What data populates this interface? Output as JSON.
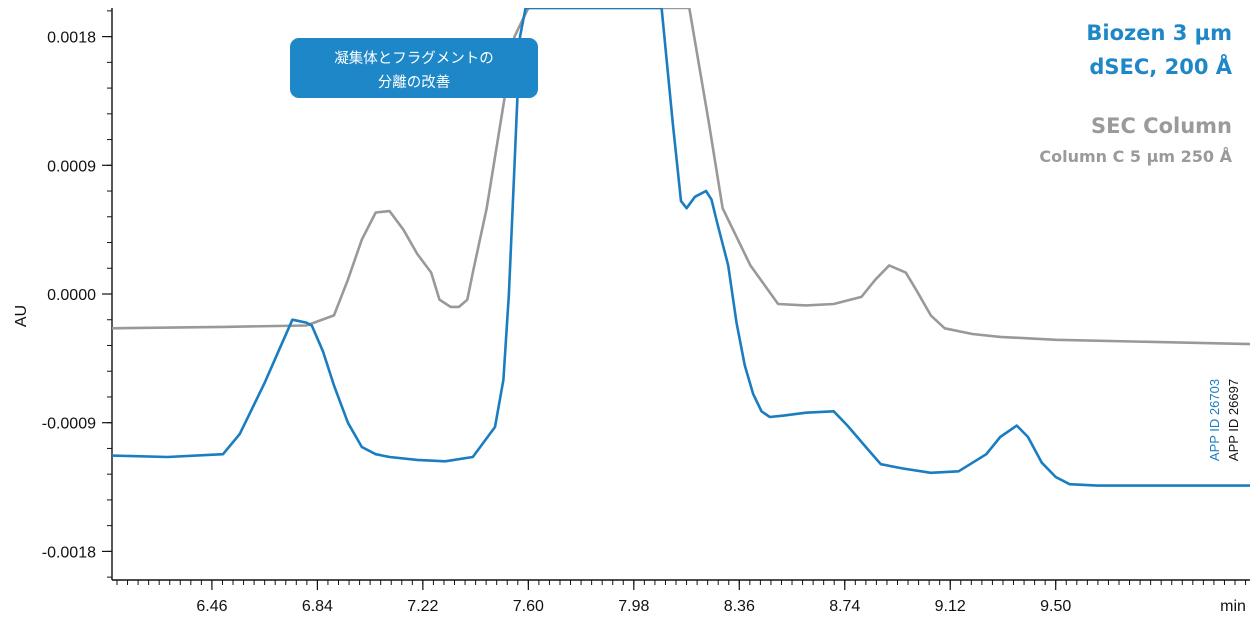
{
  "chart_data": {
    "type": "line",
    "xlabel": "min",
    "ylabel": "AU",
    "xlim": [
      6.1,
      10.2
    ],
    "ylim": [
      -0.002,
      0.002
    ],
    "x_ticks": [
      "6.46",
      "6.84",
      "7.22",
      "7.60",
      "7.98",
      "8.36",
      "8.74",
      "9.12",
      "9.50"
    ],
    "x_tick_values": [
      6.46,
      6.84,
      7.22,
      7.6,
      7.98,
      8.36,
      8.74,
      9.12,
      9.5
    ],
    "y_ticks": [
      "0.0018",
      "0.0009",
      "0.0000",
      "-0.0009",
      "-0.0018"
    ],
    "y_tick_values": [
      0.0018,
      0.0009,
      0.0,
      -0.0009,
      -0.0018
    ],
    "grid": false,
    "annotation": {
      "line1": "凝集体とフラグメントの",
      "line2": "分離の改善",
      "color": "#1e87c8"
    },
    "legend": {
      "series1_line1": "Biozen 3 µm",
      "series1_line2": "dSEC, 200 Å",
      "series2_line1": "SEC Column",
      "series2_line2": "Column C 5 µm 250 Å",
      "placement": "top-right"
    },
    "app_ids": {
      "blue": "APP ID 26703",
      "black": "APP ID 26697"
    },
    "series": [
      {
        "name": "Biozen 3 µm dSEC, 200 Å",
        "color": "#1a7dc0",
        "x": [
          6.1,
          6.3,
          6.5,
          6.56,
          6.6,
          6.65,
          6.7,
          6.75,
          6.8,
          6.82,
          6.86,
          6.9,
          6.95,
          7.0,
          7.05,
          7.1,
          7.2,
          7.3,
          7.4,
          7.48,
          7.51,
          7.53,
          7.55,
          7.57,
          7.59,
          7.6,
          8.08,
          8.12,
          8.15,
          8.17,
          8.2,
          8.24,
          8.26,
          8.28,
          8.32,
          8.35,
          8.38,
          8.41,
          8.44,
          8.47,
          8.52,
          8.6,
          8.7,
          8.75,
          8.82,
          8.87,
          8.95,
          9.05,
          9.15,
          9.25,
          9.3,
          9.36,
          9.4,
          9.45,
          9.5,
          9.55,
          9.65,
          10.2
        ],
        "y": [
          -0.00113,
          -0.00114,
          -0.00112,
          -0.00098,
          -0.00082,
          -0.00062,
          -0.0004,
          -0.00018,
          -0.0002,
          -0.00022,
          -0.0004,
          -0.00064,
          -0.0009,
          -0.00107,
          -0.00112,
          -0.00114,
          -0.00116,
          -0.00117,
          -0.00114,
          -0.00093,
          -0.0006,
          0.0,
          0.0009,
          0.0018,
          0.002,
          0.002,
          0.002,
          0.0012,
          0.00065,
          0.0006,
          0.00068,
          0.00072,
          0.00066,
          0.0005,
          0.0002,
          -0.0002,
          -0.0005,
          -0.0007,
          -0.00082,
          -0.00086,
          -0.00085,
          -0.00083,
          -0.00082,
          -0.00092,
          -0.00108,
          -0.00119,
          -0.00122,
          -0.00125,
          -0.00124,
          -0.00112,
          -0.001,
          -0.00092,
          -0.001,
          -0.00118,
          -0.00128,
          -0.00133,
          -0.00134,
          -0.00134
        ]
      },
      {
        "name": "SEC Column Column C 5 µm 250 Å",
        "color": "#999999",
        "x": [
          6.1,
          6.5,
          6.8,
          6.9,
          6.95,
          7.0,
          7.05,
          7.1,
          7.15,
          7.2,
          7.25,
          7.28,
          7.32,
          7.35,
          7.38,
          7.4,
          7.45,
          7.5,
          7.55,
          7.6,
          8.18,
          8.25,
          8.3,
          8.35,
          8.4,
          8.5,
          8.6,
          8.7,
          8.8,
          8.85,
          8.9,
          8.96,
          9.0,
          9.05,
          9.1,
          9.2,
          9.3,
          9.5,
          10.2
        ],
        "y": [
          -0.00024,
          -0.00023,
          -0.00022,
          -0.00015,
          0.0001,
          0.00038,
          0.00057,
          0.00058,
          0.00045,
          0.00028,
          0.00015,
          -4e-05,
          -9e-05,
          -9e-05,
          -4e-05,
          0.00015,
          0.0006,
          0.0012,
          0.0018,
          0.002,
          0.002,
          0.0012,
          0.0006,
          0.0004,
          0.0002,
          -7e-05,
          -8e-05,
          -7e-05,
          -2e-05,
          0.0001,
          0.0002,
          0.00015,
          2e-05,
          -0.00015,
          -0.00024,
          -0.00028,
          -0.0003,
          -0.00032,
          -0.00035
        ]
      }
    ]
  }
}
